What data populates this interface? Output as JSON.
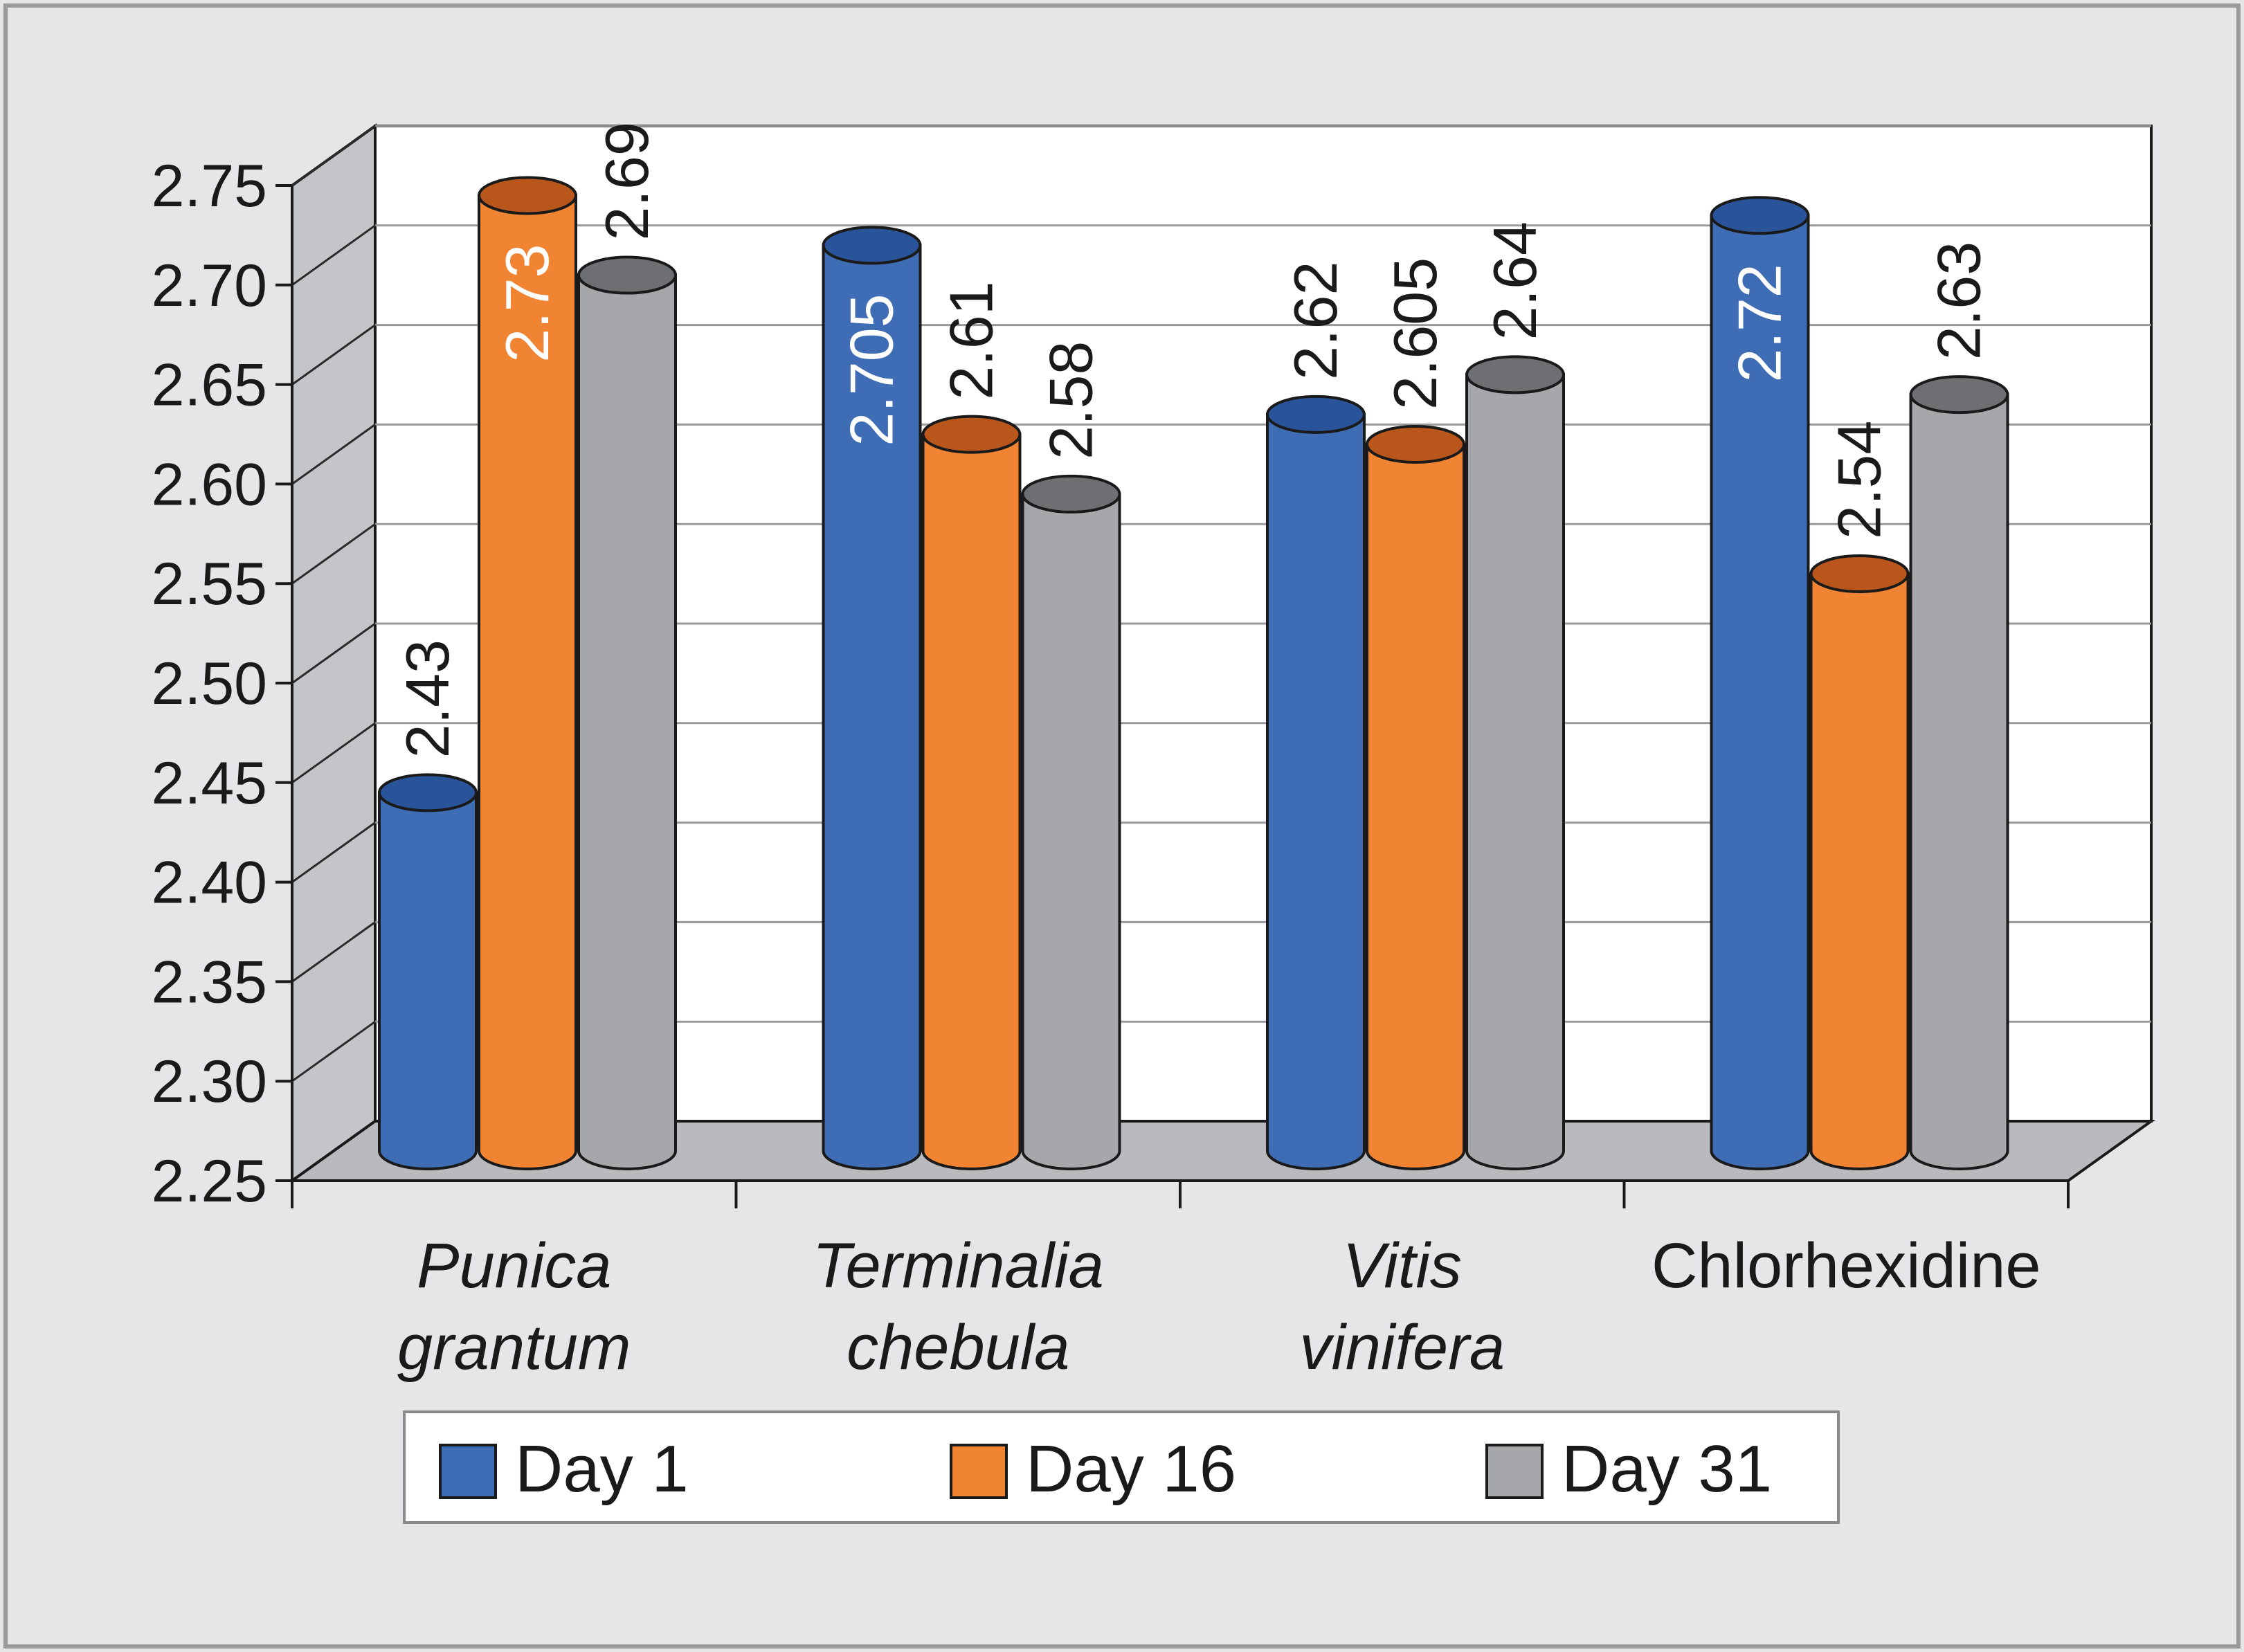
{
  "chart_data": {
    "type": "bar",
    "title": "",
    "xlabel": "",
    "ylabel": "",
    "ylim": [
      2.25,
      2.75
    ],
    "yticks": [
      "2.25",
      "2.30",
      "2.35",
      "2.40",
      "2.45",
      "2.50",
      "2.55",
      "2.60",
      "2.65",
      "2.70",
      "2.75"
    ],
    "categories": [
      {
        "lines": [
          "Punica",
          "grantum"
        ],
        "italic": true
      },
      {
        "lines": [
          "Terminalia",
          "chebula"
        ],
        "italic": true
      },
      {
        "lines": [
          "Vitis",
          "vinifera"
        ],
        "italic": true
      },
      {
        "lines": [
          "Chlorhexidine"
        ],
        "italic": false
      }
    ],
    "series": [
      {
        "name": "Day 1",
        "color": "#3f6db5",
        "top_color": "#2a5499",
        "values": [
          2.43,
          2.705,
          2.62,
          2.72
        ],
        "labels": [
          "2.43",
          "2.705",
          "2.62",
          "2.72"
        ]
      },
      {
        "name": "Day 16",
        "color": "#f08432",
        "top_color": "#b9561b",
        "values": [
          2.73,
          2.61,
          2.605,
          2.54
        ],
        "labels": [
          "2.73",
          "2.61",
          "2.605",
          "2.54"
        ]
      },
      {
        "name": "Day 31",
        "color": "#a6a7aa",
        "top_color": "#6e6f72",
        "values": [
          2.69,
          2.58,
          2.64,
          2.63
        ],
        "labels": [
          "2.69",
          "2.58",
          "2.64",
          "2.63"
        ]
      }
    ],
    "grid": true,
    "legend_position": "bottom",
    "style": "3d-cylinder"
  }
}
